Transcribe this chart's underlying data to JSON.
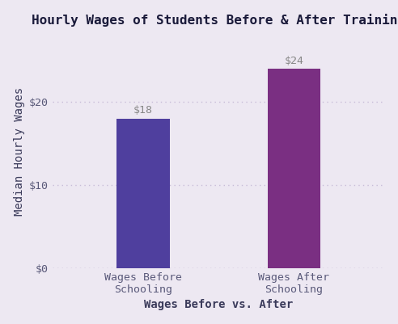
{
  "title": "Hourly Wages of Students Before & After Training",
  "xlabel": "Wages Before vs. After",
  "ylabel": "Median Hourly Wages",
  "categories": [
    "Wages Before\nSchooling",
    "Wages After\nSchooling"
  ],
  "values": [
    18,
    24
  ],
  "bar_colors": [
    "#4f3f9e",
    "#7a2f82"
  ],
  "value_labels": [
    "$18",
    "$24"
  ],
  "yticks": [
    0,
    10,
    20
  ],
  "ytick_labels": [
    "$0",
    "$10",
    "$20"
  ],
  "ylim": [
    0,
    28
  ],
  "background_color": "#ede8f2",
  "title_color": "#1a1a3a",
  "label_color": "#3a3a5a",
  "tick_color": "#5a5a7a",
  "grid_color": "#c8bcd8",
  "bar_label_color": "#888888",
  "title_fontsize": 11.5,
  "axis_label_fontsize": 10,
  "tick_label_fontsize": 9.5,
  "bar_label_fontsize": 9.5,
  "bar_width": 0.35,
  "x_positions": [
    0,
    1
  ]
}
